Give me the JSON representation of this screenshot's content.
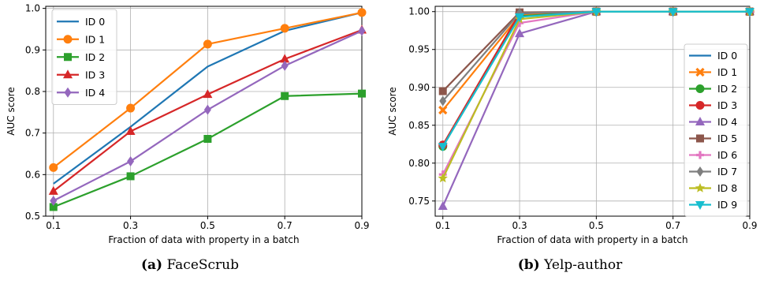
{
  "chart_data": [
    {
      "type": "line",
      "caption_tag": "(a)",
      "caption_text": "FaceScrub",
      "xlabel": "Fraction of data with property in a batch",
      "ylabel": "AUC score",
      "x": [
        0.1,
        0.3,
        0.5,
        0.7,
        0.9
      ],
      "xlim": [
        0.08,
        0.9
      ],
      "ylim": [
        0.5,
        1.005
      ],
      "xticks": [
        "0.1",
        "0.3",
        "0.5",
        "0.7",
        "0.9"
      ],
      "yticks": [
        0.5,
        0.6,
        0.7,
        0.8,
        0.9,
        1.0
      ],
      "ytick_labels": [
        "0.5",
        "0.6",
        "0.7",
        "0.8",
        "0.9",
        "1.0"
      ],
      "grid": true,
      "legend_position": "top-left",
      "series": [
        {
          "name": "ID 0",
          "color": "#1f77b4",
          "marker": "none",
          "values": [
            0.578,
            0.715,
            0.86,
            0.946,
            0.99
          ]
        },
        {
          "name": "ID 1",
          "color": "#ff7f0e",
          "marker": "circle",
          "values": [
            0.617,
            0.76,
            0.914,
            0.952,
            0.99
          ]
        },
        {
          "name": "ID 2",
          "color": "#2ca02c",
          "marker": "square",
          "values": [
            0.522,
            0.596,
            0.686,
            0.789,
            0.795
          ]
        },
        {
          "name": "ID 3",
          "color": "#d62728",
          "marker": "triangle",
          "values": [
            0.56,
            0.704,
            0.793,
            0.878,
            0.948
          ]
        },
        {
          "name": "ID 4",
          "color": "#9467bd",
          "marker": "diamond",
          "values": [
            0.537,
            0.632,
            0.756,
            0.862,
            0.946
          ]
        }
      ]
    },
    {
      "type": "line",
      "caption_tag": "(b)",
      "caption_text": "Yelp-author",
      "xlabel": "Fraction of data with property in a batch",
      "ylabel": "AUC score",
      "x": [
        0.1,
        0.3,
        0.5,
        0.7,
        0.9
      ],
      "xlim": [
        0.08,
        0.9
      ],
      "ylim": [
        0.73,
        1.007
      ],
      "xticks": [
        "0.1",
        "0.3",
        "0.5",
        "0.7",
        "0.9"
      ],
      "yticks": [
        0.75,
        0.8,
        0.85,
        0.9,
        0.95,
        1.0
      ],
      "ytick_labels": [
        "0.75",
        "0.80",
        "0.85",
        "0.90",
        "0.95",
        "1.00"
      ],
      "grid": true,
      "legend_position": "right",
      "series": [
        {
          "name": "ID 0",
          "color": "#1f77b4",
          "marker": "none",
          "values": [
            0.822,
            0.997,
            1.0,
            1.0,
            1.0
          ]
        },
        {
          "name": "ID 1",
          "color": "#ff7f0e",
          "marker": "x",
          "values": [
            0.87,
            0.995,
            1.0,
            1.0,
            1.0
          ]
        },
        {
          "name": "ID 2",
          "color": "#2ca02c",
          "marker": "circle",
          "values": [
            0.822,
            0.994,
            1.0,
            1.0,
            1.0
          ]
        },
        {
          "name": "ID 3",
          "color": "#d62728",
          "marker": "circle",
          "values": [
            0.824,
            0.998,
            1.0,
            1.0,
            1.0
          ]
        },
        {
          "name": "ID 4",
          "color": "#9467bd",
          "marker": "triangle",
          "values": [
            0.743,
            0.971,
            1.0,
            1.0,
            1.0
          ]
        },
        {
          "name": "ID 5",
          "color": "#8c564b",
          "marker": "square",
          "values": [
            0.895,
            0.999,
            1.0,
            1.0,
            1.0
          ]
        },
        {
          "name": "ID 6",
          "color": "#e377c2",
          "marker": "plus",
          "values": [
            0.785,
            0.985,
            1.0,
            1.0,
            1.0
          ]
        },
        {
          "name": "ID 7",
          "color": "#7f7f7f",
          "marker": "diamond",
          "values": [
            0.882,
            0.998,
            1.0,
            1.0,
            1.0
          ]
        },
        {
          "name": "ID 8",
          "color": "#bcbd22",
          "marker": "star",
          "values": [
            0.78,
            0.99,
            1.0,
            1.0,
            1.0
          ]
        },
        {
          "name": "ID 9",
          "color": "#17becf",
          "marker": "triangle-down",
          "values": [
            0.822,
            0.993,
            1.0,
            1.0,
            1.0
          ]
        }
      ]
    }
  ]
}
